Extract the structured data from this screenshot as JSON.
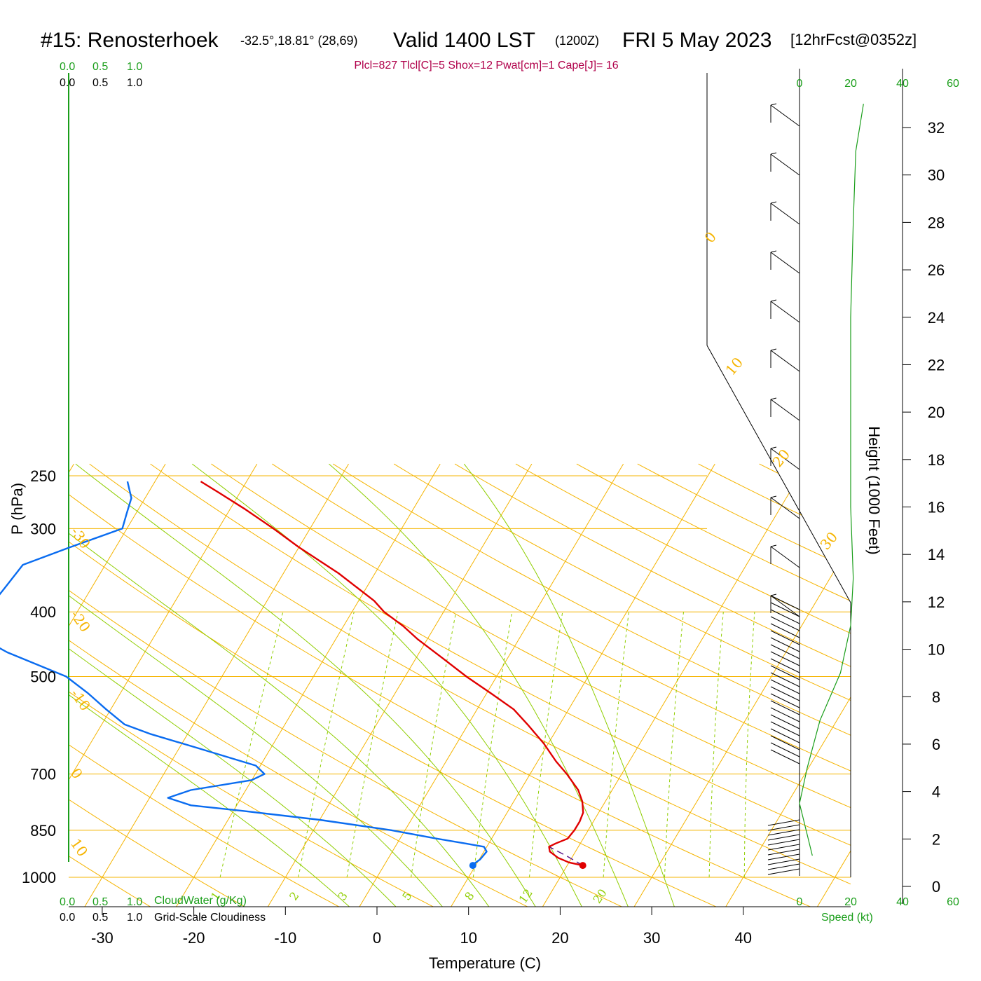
{
  "title": {
    "station": "#15: Renosterhoek",
    "coords": "-32.5°,18.81° (28,69)",
    "valid": "Valid 1400 LST",
    "utc": "(1200Z)",
    "date": "FRI 5 May 2023",
    "forecast": "[12hrFcst@0352z]"
  },
  "params": "Plcl=827 Tlcl[C]=5 Shox=12 Pwat[cm]=1 Cape[J]= 16",
  "labels": {
    "xlabel": "Temperature (C)",
    "ylabel": "P (hPa)",
    "height_label": "Height (1000 Feet)",
    "cloudwater": "CloudWater (g/Kg)",
    "cloudiness": "Grid-Scale Cloudiness",
    "speed": "Speed (kt)"
  },
  "scales": {
    "top_green": [
      "0.0",
      "0.5",
      "1.0"
    ],
    "top_black": [
      "0.0",
      "0.5",
      "1.0"
    ],
    "bottom_green": [
      "0.0",
      "0.5",
      "1.0"
    ],
    "bottom_black": [
      "0.0",
      "0.5",
      "1.0"
    ],
    "speed_ticks": [
      "0",
      "20",
      "40",
      "60"
    ]
  },
  "colors": {
    "isotherm": "#f5b400",
    "mixing_ratio": "#8fce00",
    "temperature": "#e00000",
    "dewpoint": "#0a6cf0",
    "parcel": "#5a1a8a",
    "wind_speed": "#1a9e1a",
    "params_text": "#b0004a"
  },
  "chart_data": {
    "type": "skew-t",
    "title": "#15: Renosterhoek  Valid 1400 LST (1200Z) FRI 5 May 2023 [12hrFcst@0352z]",
    "xlabel": "Temperature (C)",
    "ylabel": "P (hPa)",
    "x_ticks": [
      -30,
      -20,
      -10,
      0,
      10,
      20,
      30,
      40
    ],
    "p_ticks": [
      250,
      300,
      400,
      500,
      700,
      850,
      1000
    ],
    "height_ticks_kft": [
      0,
      2,
      4,
      6,
      8,
      10,
      12,
      14,
      16,
      18,
      20,
      22,
      24,
      26,
      28,
      30,
      32
    ],
    "isotherm_labels": [
      "-30",
      "-20",
      "-10",
      "0",
      "10",
      "0",
      "10",
      "20",
      "30"
    ],
    "mixing_ratio_labels": [
      "1",
      "2",
      "3",
      "5",
      "8",
      "12",
      "20"
    ],
    "temperature_profile": [
      {
        "p": 960,
        "t": 21.7
      },
      {
        "p": 950,
        "t": 20.0
      },
      {
        "p": 935,
        "t": 18.5
      },
      {
        "p": 915,
        "t": 17.2
      },
      {
        "p": 900,
        "t": 16.8
      },
      {
        "p": 890,
        "t": 17.3
      },
      {
        "p": 875,
        "t": 18.3
      },
      {
        "p": 850,
        "t": 18.5
      },
      {
        "p": 825,
        "t": 18.5
      },
      {
        "p": 800,
        "t": 18.3
      },
      {
        "p": 770,
        "t": 17.5
      },
      {
        "p": 740,
        "t": 16.3
      },
      {
        "p": 700,
        "t": 14.0
      },
      {
        "p": 670,
        "t": 12.0
      },
      {
        "p": 630,
        "t": 9.5
      },
      {
        "p": 590,
        "t": 6.5
      },
      {
        "p": 560,
        "t": 4.0
      },
      {
        "p": 530,
        "t": 0.5
      },
      {
        "p": 500,
        "t": -3.3
      },
      {
        "p": 470,
        "t": -7.0
      },
      {
        "p": 440,
        "t": -11.0
      },
      {
        "p": 420,
        "t": -13.5
      },
      {
        "p": 400,
        "t": -16.5
      },
      {
        "p": 385,
        "t": -18.3
      },
      {
        "p": 350,
        "t": -24.0
      },
      {
        "p": 320,
        "t": -30.0
      },
      {
        "p": 300,
        "t": -34.0
      },
      {
        "p": 280,
        "t": -38.5
      },
      {
        "p": 265,
        "t": -42.3
      },
      {
        "p": 255,
        "t": -45.0
      }
    ],
    "dewpoint_profile": [
      {
        "p": 960,
        "t": 9.7
      },
      {
        "p": 955,
        "t": 9.7
      },
      {
        "p": 940,
        "t": 10.1
      },
      {
        "p": 915,
        "t": 10.3
      },
      {
        "p": 900,
        "t": 9.7
      },
      {
        "p": 890,
        "t": 7.5
      },
      {
        "p": 875,
        "t": 4.0
      },
      {
        "p": 850,
        "t": -1.5
      },
      {
        "p": 820,
        "t": -10.0
      },
      {
        "p": 795,
        "t": -19.0
      },
      {
        "p": 780,
        "t": -25.0
      },
      {
        "p": 760,
        "t": -28.0
      },
      {
        "p": 740,
        "t": -26.0
      },
      {
        "p": 715,
        "t": -20.0
      },
      {
        "p": 700,
        "t": -19.0
      },
      {
        "p": 680,
        "t": -20.5
      },
      {
        "p": 640,
        "t": -28.0
      },
      {
        "p": 610,
        "t": -34.0
      },
      {
        "p": 590,
        "t": -37.5
      },
      {
        "p": 560,
        "t": -40.5
      },
      {
        "p": 530,
        "t": -43.5
      },
      {
        "p": 500,
        "t": -47.0
      },
      {
        "p": 460,
        "t": -55.0
      },
      {
        "p": 420,
        "t": -62.0
      },
      {
        "p": 400,
        "t": -60.0
      },
      {
        "p": 370,
        "t": -59.5
      },
      {
        "p": 340,
        "t": -59.0
      },
      {
        "p": 320,
        "t": -55.0
      },
      {
        "p": 300,
        "t": -50.5
      },
      {
        "p": 285,
        "t": -51.0
      },
      {
        "p": 270,
        "t": -51.5
      },
      {
        "p": 255,
        "t": -53.0
      }
    ],
    "parcel_path": [
      {
        "p": 960,
        "t": 21.7
      },
      {
        "p": 930,
        "t": 19.4
      },
      {
        "p": 900,
        "t": 16.8
      }
    ],
    "surface": {
      "t": 21.7,
      "td": 9.7,
      "p": 960
    },
    "wind_speed_kt": [
      {
        "h_kft": 1.3,
        "s": 5
      },
      {
        "h_kft": 3.5,
        "s": 0
      },
      {
        "h_kft": 5,
        "s": 3
      },
      {
        "h_kft": 7,
        "s": 8
      },
      {
        "h_kft": 9,
        "s": 16
      },
      {
        "h_kft": 11,
        "s": 20
      },
      {
        "h_kft": 13,
        "s": 21
      },
      {
        "h_kft": 16,
        "s": 20
      },
      {
        "h_kft": 20,
        "s": 20
      },
      {
        "h_kft": 24,
        "s": 20
      },
      {
        "h_kft": 28,
        "s": 21
      },
      {
        "h_kft": 31,
        "s": 22
      },
      {
        "h_kft": 33,
        "s": 25
      }
    ],
    "ylim": [
      250,
      1000
    ],
    "xlim": [
      -30,
      40
    ]
  }
}
